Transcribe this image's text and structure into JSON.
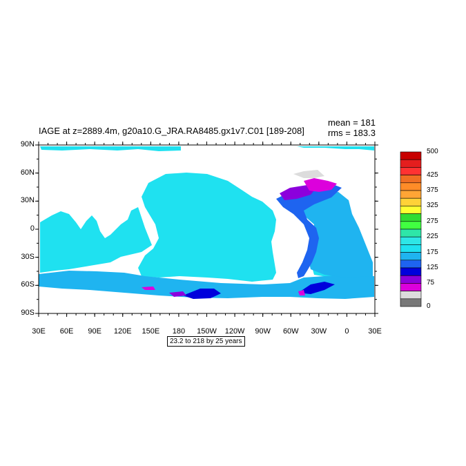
{
  "title": "IAGE at z=2889.4m, g20a10.G_JRA.RA8485.gx1v7.C01 [189-208]",
  "stats": {
    "mean": "mean = 181",
    "rms": "rms = 183.3"
  },
  "lat_labels": [
    "90N",
    "60N",
    "30N",
    "0",
    "30S",
    "60S",
    "90S"
  ],
  "lon_labels": [
    "30E",
    "60E",
    "90E",
    "120E",
    "150E",
    "180",
    "150W",
    "120W",
    "90W",
    "60W",
    "30W",
    "0",
    "30E"
  ],
  "contour_note": "23.2 to 218 by 25 years",
  "colorbar": {
    "colors": [
      "#c80000",
      "#e41e1e",
      "#ff3232",
      "#f06e23",
      "#ff8c28",
      "#ffa535",
      "#ffd238",
      "#ffff32",
      "#32dc32",
      "#41ff41",
      "#2ee6a8",
      "#2ee6e6",
      "#1fe1f0",
      "#1fb4f0",
      "#1e64f0",
      "#0000dc",
      "#8c00dc",
      "#dc00dc",
      "#dcdcdc",
      "#787878"
    ],
    "labels": [
      "500",
      "425",
      "375",
      "325",
      "275",
      "225",
      "175",
      "125",
      "75",
      "0"
    ]
  },
  "map": {
    "colors": {
      "ocean_main": "#1fe1f0",
      "ocean_mid": "#1fb4f0",
      "ocean_low": "#1e64f0",
      "ocean_lower": "#0000dc",
      "purple": "#8c00dc",
      "magenta": "#dc00dc",
      "gray": "#dcdcdc",
      "land": "#ffffff"
    }
  }
}
